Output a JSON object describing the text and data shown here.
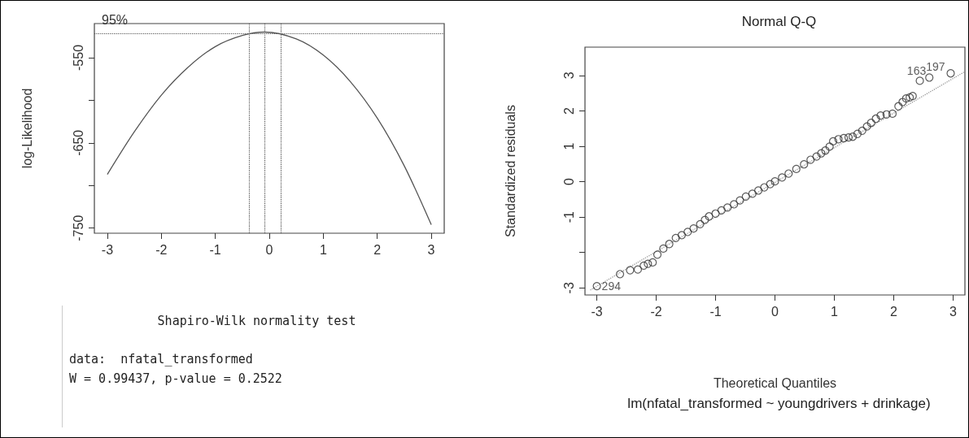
{
  "chart_data": [
    {
      "type": "line",
      "ylabel": "log-Likelihood",
      "x": [
        -3,
        -2.5,
        -2,
        -1.5,
        -1,
        -0.5,
        -0.09,
        0.5,
        1,
        1.5,
        2,
        2.5,
        3
      ],
      "values": [
        -687,
        -637,
        -594,
        -561,
        -537,
        -524,
        -520,
        -528,
        -547,
        -578,
        -621,
        -677,
        -746
      ],
      "color": "#555555",
      "xlim": [
        -3.24,
        3.24
      ],
      "xticks": [
        -3,
        -2,
        -1,
        0,
        1,
        2,
        3
      ],
      "ylim": [
        -756,
        -510
      ],
      "yticks": [
        -550,
        {
          "value": -600,
          "label": null
        },
        -650,
        {
          "value": -700,
          "label": null
        },
        -750
      ],
      "annotations": [
        "95%"
      ],
      "ref_lines": [
        {
          "axis": "y",
          "value": -522,
          "color": "#555555",
          "line_style": "dotted"
        },
        {
          "axis": "x",
          "value": -0.38,
          "color": "#555555",
          "line_style": "dotted"
        },
        {
          "axis": "x",
          "value": -0.09,
          "color": "#555555",
          "line_style": "dotted"
        },
        {
          "axis": "x",
          "value": 0.22,
          "color": "#555555",
          "line_style": "dotted"
        }
      ]
    },
    {
      "type": "other",
      "title": "Shapiro-Wilk normality test",
      "annotations": [
        "data:  nfatal_transformed",
        "W = 0.99437, p-value = 0.2522"
      ]
    },
    {
      "type": "scatter",
      "title": "Normal Q-Q",
      "xlabel": "Theoretical Quantiles",
      "ylabel": "Standardized residuals",
      "subtitle": "lm(nfatal_transformed ~ youngdrivers + drinkage)",
      "series": [
        {
          "type": "line",
          "x": [
            -3.11,
            3.2
          ],
          "values": [
            -3.06,
            3.11
          ],
          "color": "#999999",
          "line_style": "dotted"
        },
        {
          "color": "#333333",
          "marker": "circle",
          "x": [
            -3,
            -2.61,
            -2.44,
            -2.31,
            -2.21,
            -2.14,
            -2.06,
            -1.98,
            -1.88,
            -1.78,
            -1.67,
            -1.57,
            -1.47,
            -1.37,
            -1.26,
            -1.18,
            -1.11,
            -1.0,
            -0.9,
            -0.8,
            -0.69,
            -0.59,
            -0.49,
            -0.38,
            -0.28,
            -0.18,
            -0.08,
            0,
            0.12,
            0.23,
            0.36,
            0.49,
            0.6,
            0.7,
            0.78,
            0.85,
            0.92,
            0.98,
            1.07,
            1.16,
            1.24,
            1.31,
            1.39,
            1.47,
            1.55,
            1.62,
            1.7,
            1.78,
            1.88,
            1.98,
            2.08,
            2.15,
            2.21,
            2.27,
            2.32,
            2.44,
            2.6,
            2.96
          ],
          "values": [
            -2.95,
            -2.61,
            -2.5,
            -2.48,
            -2.37,
            -2.32,
            -2.28,
            -2.06,
            -1.89,
            -1.76,
            -1.59,
            -1.51,
            -1.42,
            -1.32,
            -1.2,
            -1.08,
            -0.98,
            -0.9,
            -0.81,
            -0.73,
            -0.64,
            -0.53,
            -0.42,
            -0.34,
            -0.25,
            -0.16,
            -0.07,
            0.01,
            0.12,
            0.23,
            0.36,
            0.49,
            0.62,
            0.71,
            0.8,
            0.88,
            0.99,
            1.14,
            1.2,
            1.23,
            1.25,
            1.27,
            1.35,
            1.44,
            1.56,
            1.66,
            1.78,
            1.87,
            1.9,
            1.92,
            2.13,
            2.25,
            2.35,
            2.38,
            2.42,
            2.85,
            2.94,
            3.06
          ]
        }
      ],
      "annotations": [
        {
          "text": "294",
          "x": -3,
          "y": -2.95
        },
        {
          "text": "163",
          "x": 2.6,
          "y": 2.94
        },
        {
          "text": "197",
          "x": 2.96,
          "y": 3.06
        }
      ],
      "xlim": [
        -3.2,
        3.2
      ],
      "xticks": [
        -3,
        -2,
        -1,
        0,
        1,
        2,
        3
      ],
      "ylim": [
        -3.2,
        3.8
      ],
      "yticks": [
        -3,
        {
          "value": -2,
          "label": null
        },
        -1,
        0,
        1,
        2,
        3
      ]
    }
  ]
}
